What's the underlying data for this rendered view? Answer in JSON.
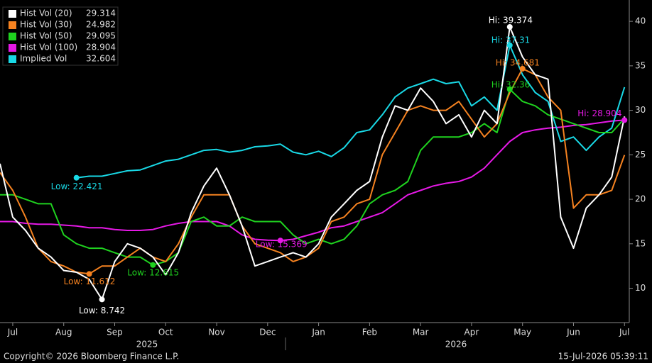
{
  "chart_data": {
    "type": "line",
    "x": [
      -0.25,
      0,
      0.25,
      0.5,
      0.75,
      1,
      1.25,
      1.5,
      1.75,
      2,
      2.25,
      2.5,
      2.75,
      3,
      3.25,
      3.5,
      3.75,
      4,
      4.25,
      4.5,
      4.75,
      5,
      5.25,
      5.5,
      5.75,
      6,
      6.25,
      6.5,
      6.75,
      7,
      7.25,
      7.5,
      7.75,
      8,
      8.25,
      8.5,
      8.75,
      9,
      9.25,
      9.5,
      9.75,
      10,
      10.25,
      10.5,
      10.75,
      11,
      11.25,
      11.5,
      11.75,
      12
    ],
    "xlim": [
      -0.25,
      12.08
    ],
    "xticks": [
      {
        "value": 0,
        "label": "Jul"
      },
      {
        "value": 1,
        "label": "Aug"
      },
      {
        "value": 2,
        "label": "Sep"
      },
      {
        "value": 3,
        "label": "Oct"
      },
      {
        "value": 4,
        "label": "Nov"
      },
      {
        "value": 5,
        "label": "Dec"
      },
      {
        "value": 6,
        "label": "Jan"
      },
      {
        "value": 7,
        "label": "Feb"
      },
      {
        "value": 8,
        "label": "Mar"
      },
      {
        "value": 9,
        "label": "Apr"
      },
      {
        "value": 10,
        "label": "May"
      },
      {
        "value": 11,
        "label": "Jun"
      },
      {
        "value": 12,
        "label": "Jul"
      }
    ],
    "year_labels": [
      "2025",
      "2026"
    ],
    "ylim": [
      6.14,
      42.4
    ],
    "yticks": [
      10,
      15,
      20,
      25,
      30,
      35,
      40
    ],
    "series": [
      {
        "name": "Hist Vol (20)",
        "color": "#ffffff",
        "values": [
          24.0,
          18.0,
          16.5,
          14.5,
          13.5,
          12.0,
          11.8,
          11.0,
          8.742,
          13.0,
          15.0,
          14.5,
          13.5,
          11.5,
          14.0,
          18.5,
          21.5,
          23.5,
          20.5,
          17.0,
          12.5,
          13.0,
          13.5,
          14.0,
          13.5,
          15.0,
          18.0,
          19.5,
          21.0,
          22.0,
          27.0,
          30.5,
          30.0,
          32.5,
          31.0,
          28.5,
          29.5,
          27.0,
          30.0,
          28.5,
          39.374,
          36.0,
          34.0,
          33.5,
          18.0,
          14.5,
          19.0,
          20.5,
          22.5,
          29.314
        ]
      },
      {
        "name": "Hist Vol (30)",
        "color": "#f58220",
        "values": [
          23.0,
          21.0,
          18.0,
          14.5,
          13.0,
          12.5,
          11.8,
          11.612,
          12.5,
          12.5,
          13.5,
          14.5,
          13.5,
          13.0,
          15.0,
          18.0,
          20.5,
          20.5,
          20.5,
          17.0,
          15.0,
          14.5,
          14.0,
          13.0,
          13.5,
          14.5,
          17.5,
          18.0,
          19.5,
          20.0,
          25.0,
          27.5,
          30.0,
          30.5,
          30.0,
          30.0,
          31.0,
          29.0,
          27.0,
          28.5,
          32.0,
          34.681,
          34.0,
          31.5,
          30.0,
          19.0,
          20.5,
          20.5,
          21.0,
          24.982
        ]
      },
      {
        "name": "Hist Vol (50)",
        "color": "#1fd21f",
        "values": [
          20.5,
          20.5,
          20.0,
          19.5,
          19.5,
          16.0,
          15.0,
          14.5,
          14.5,
          14.0,
          13.5,
          13.5,
          12.615,
          13.0,
          14.0,
          17.5,
          18.0,
          17.0,
          17.0,
          18.0,
          17.5,
          17.5,
          17.5,
          16.0,
          15.0,
          15.5,
          15.0,
          15.5,
          17.0,
          19.5,
          20.5,
          21.0,
          22.0,
          25.5,
          27.0,
          27.0,
          27.0,
          27.5,
          28.5,
          27.5,
          32.36,
          31.0,
          30.5,
          29.5,
          29.0,
          28.5,
          28.0,
          27.5,
          27.5,
          29.095
        ]
      },
      {
        "name": "Hist Vol (100)",
        "color": "#e619e6",
        "values": [
          17.5,
          17.5,
          17.3,
          17.2,
          17.2,
          17.1,
          17.0,
          16.8,
          16.8,
          16.6,
          16.5,
          16.5,
          16.6,
          17.0,
          17.3,
          17.5,
          17.5,
          17.5,
          17.0,
          16.0,
          15.5,
          15.4,
          15.369,
          15.5,
          15.9,
          16.3,
          16.8,
          17.0,
          17.5,
          18.0,
          18.5,
          19.5,
          20.5,
          21.0,
          21.5,
          21.8,
          22.0,
          22.5,
          23.5,
          25.0,
          26.5,
          27.5,
          27.8,
          28.0,
          28.1,
          28.3,
          28.4,
          28.6,
          28.8,
          28.904
        ]
      },
      {
        "name": "Implied Vol",
        "color": "#19d9e6",
        "values": [
          null,
          null,
          null,
          null,
          null,
          null,
          22.421,
          22.6,
          22.6,
          22.9,
          23.2,
          23.3,
          23.8,
          24.3,
          24.5,
          25.0,
          25.5,
          25.6,
          25.3,
          25.5,
          25.9,
          26.0,
          26.2,
          25.3,
          25.0,
          25.4,
          24.8,
          25.8,
          27.5,
          27.8,
          29.5,
          31.5,
          32.5,
          33.0,
          33.5,
          33.0,
          33.2,
          30.5,
          31.5,
          30.0,
          37.31,
          34.0,
          32.0,
          31.0,
          26.5,
          27.0,
          25.5,
          27.0,
          28.0,
          32.604
        ]
      }
    ],
    "annotations": [
      "Low: 8.742",
      "Low: 11.612",
      "Low: 12.615",
      "Low: 15.369",
      "Low: 22.421",
      "Hi: 39.374",
      "Hi: 37.31",
      "Hi: 34.681",
      "Hi: 32.36",
      "Hi: 28.904"
    ]
  },
  "footer": {
    "copyright": "Copyright© 2026 Bloomberg Finance L.P.",
    "timestamp": "15-Jul-2026 05:39:11"
  }
}
